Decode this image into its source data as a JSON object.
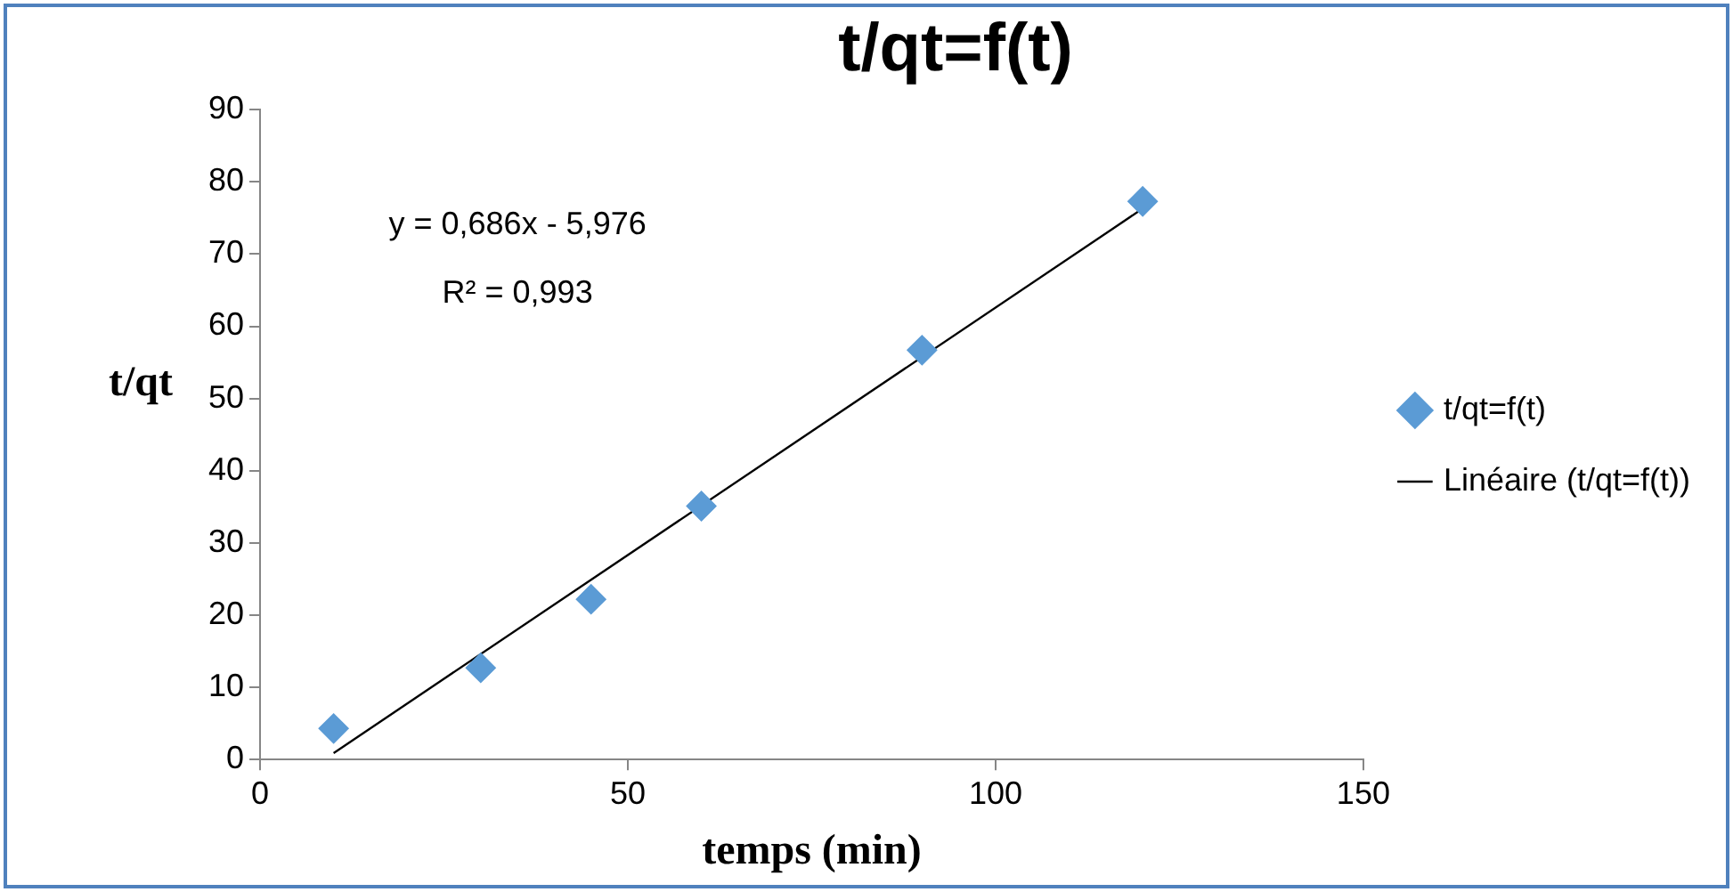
{
  "chart_data": {
    "type": "scatter",
    "title": "t/qt=f(t)",
    "xlabel": "temps (min)",
    "ylabel": "t/qt",
    "xlim": [
      0,
      150
    ],
    "xticks": [
      0,
      50,
      100,
      150
    ],
    "ylim": [
      0,
      90
    ],
    "yticks": [
      0,
      10,
      20,
      30,
      40,
      50,
      60,
      70,
      80,
      90
    ],
    "grid": false,
    "legend": "right",
    "series": [
      {
        "name": "t/qt=f(t)",
        "type": "scatter",
        "marker": "diamond",
        "color": "#5b9bd5",
        "x": [
          10,
          30,
          45,
          60,
          90,
          120
        ],
        "values": [
          4.3,
          12.7,
          22.2,
          35.1,
          56.7,
          77.3
        ]
      },
      {
        "name": "Linéaire (t/qt=f(t))",
        "type": "line",
        "color": "#000000",
        "line_style": "solid",
        "x": [
          10,
          120
        ],
        "values": [
          0.9,
          76.3
        ]
      }
    ],
    "annotations": [
      "y = 0,686x - 5,976",
      "R² = 0,993"
    ]
  }
}
